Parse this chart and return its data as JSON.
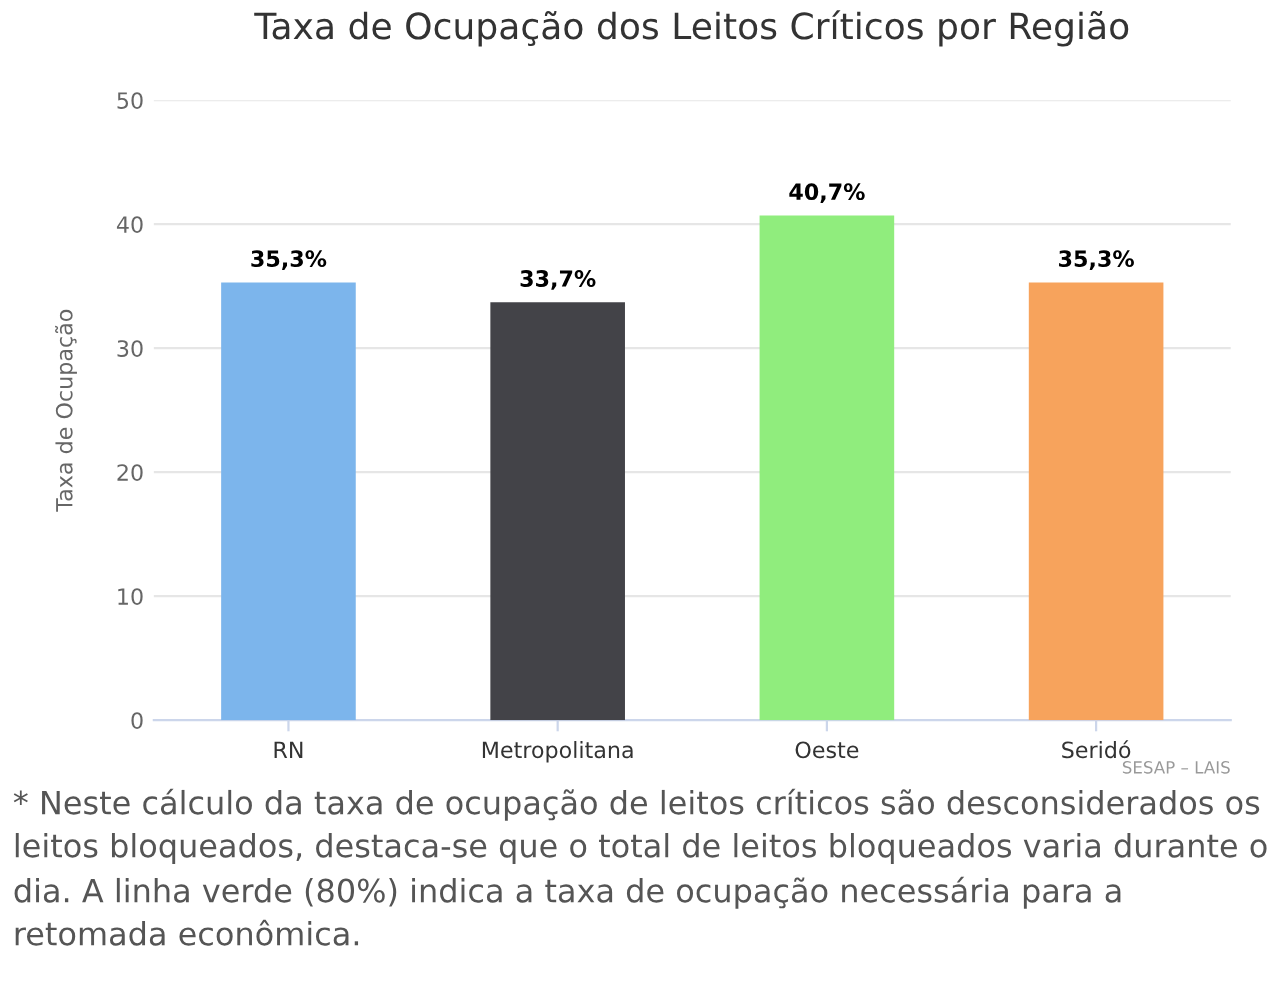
{
  "chart_data": {
    "type": "bar",
    "title": "Taxa de Ocupação dos Leitos Críticos por Região",
    "ylabel": "Taxa de Ocupação",
    "categories": [
      "RN",
      "Metropolitana",
      "Oeste",
      "Seridó"
    ],
    "values": [
      35.3,
      33.7,
      40.7,
      35.3
    ],
    "colors": [
      "#7cb5ec",
      "#434348",
      "#90ed7d",
      "#f7a35c"
    ],
    "value_labels": [
      "35,3%",
      "33,7%",
      "40,7%",
      "35,3%"
    ],
    "ylim": [
      0,
      50
    ],
    "yticks": [
      0,
      10,
      20,
      30,
      40,
      50
    ],
    "grid": "y",
    "legend": false,
    "annotations": [
      "SESAP – LAIS",
      "* Neste cálculo da taxa de ocupação de leitos críticos são desconsiderados os leitos bloqueados, destaca-se que o total de leitos bloqueados varia durante o dia. A linha verde (80%) indica a taxa de ocupação necessária para a retomada econômica."
    ]
  }
}
